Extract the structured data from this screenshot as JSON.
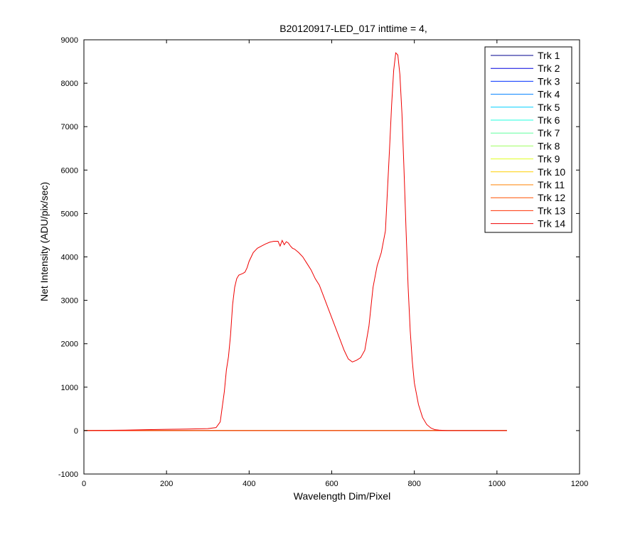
{
  "chart_data": {
    "type": "line",
    "title": "B20120917-LED_017 inttime = 4,",
    "xlabel": "Wavelength Dim/Pixel",
    "ylabel": "Net Intensity (ADU/pix/sec)",
    "xlim": [
      0,
      1200
    ],
    "ylim": [
      -1000,
      9000
    ],
    "xticks": [
      0,
      200,
      400,
      600,
      800,
      1000,
      1200
    ],
    "yticks": [
      -1000,
      0,
      1000,
      2000,
      3000,
      4000,
      5000,
      6000,
      7000,
      8000,
      9000
    ],
    "grid": false,
    "legend_position": "top-right",
    "series": [
      {
        "name": "Trk 1",
        "color": "#00008f",
        "x": [
          0,
          1024
        ],
        "y": [
          0,
          0
        ]
      },
      {
        "name": "Trk 2",
        "color": "#0000df",
        "x": [
          0,
          1024
        ],
        "y": [
          0,
          0
        ]
      },
      {
        "name": "Trk 3",
        "color": "#0030ff",
        "x": [
          0,
          1024
        ],
        "y": [
          0,
          0
        ]
      },
      {
        "name": "Trk 4",
        "color": "#0080ff",
        "x": [
          0,
          1024
        ],
        "y": [
          0,
          0
        ]
      },
      {
        "name": "Trk 5",
        "color": "#00cfff",
        "x": [
          0,
          1024
        ],
        "y": [
          0,
          0
        ]
      },
      {
        "name": "Trk 6",
        "color": "#20ffdf",
        "x": [
          0,
          1024
        ],
        "y": [
          0,
          0
        ]
      },
      {
        "name": "Trk 7",
        "color": "#60ff9f",
        "x": [
          0,
          1024
        ],
        "y": [
          0,
          0
        ]
      },
      {
        "name": "Trk 8",
        "color": "#9fff60",
        "x": [
          0,
          1024
        ],
        "y": [
          0,
          0
        ]
      },
      {
        "name": "Trk 9",
        "color": "#dfff20",
        "x": [
          0,
          1024
        ],
        "y": [
          0,
          0
        ]
      },
      {
        "name": "Trk 10",
        "color": "#ffcf00",
        "x": [
          0,
          1024
        ],
        "y": [
          0,
          0
        ]
      },
      {
        "name": "Trk 11",
        "color": "#ff8000",
        "x": [
          0,
          1024
        ],
        "y": [
          0,
          0
        ]
      },
      {
        "name": "Trk 12",
        "color": "#ff5000",
        "x": [
          0,
          1024
        ],
        "y": [
          0,
          0
        ]
      },
      {
        "name": "Trk 13",
        "color": "#ff3000",
        "x": [
          0,
          1024
        ],
        "y": [
          0,
          0
        ]
      },
      {
        "name": "Trk 14",
        "color": "#ef0000",
        "x": [
          0,
          100,
          150,
          200,
          250,
          300,
          320,
          330,
          340,
          345,
          350,
          355,
          360,
          365,
          370,
          375,
          380,
          385,
          390,
          395,
          400,
          405,
          410,
          415,
          420,
          430,
          440,
          450,
          460,
          470,
          475,
          480,
          485,
          490,
          495,
          500,
          505,
          510,
          520,
          530,
          540,
          550,
          560,
          570,
          580,
          590,
          600,
          610,
          620,
          630,
          640,
          650,
          660,
          670,
          680,
          690,
          700,
          710,
          720,
          730,
          740,
          745,
          750,
          755,
          760,
          765,
          770,
          775,
          780,
          785,
          790,
          795,
          800,
          810,
          820,
          830,
          840,
          850,
          860,
          870,
          880,
          890,
          900,
          950,
          1000,
          1024
        ],
        "y": [
          0,
          10,
          20,
          30,
          35,
          45,
          70,
          200,
          900,
          1400,
          1700,
          2200,
          2900,
          3300,
          3500,
          3580,
          3600,
          3620,
          3650,
          3750,
          3900,
          4000,
          4100,
          4150,
          4200,
          4250,
          4300,
          4340,
          4360,
          4360,
          4250,
          4380,
          4280,
          4350,
          4320,
          4250,
          4200,
          4180,
          4100,
          4000,
          3850,
          3700,
          3500,
          3350,
          3100,
          2850,
          2600,
          2350,
          2100,
          1850,
          1650,
          1580,
          1620,
          1680,
          1850,
          2400,
          3300,
          3800,
          4100,
          4600,
          6500,
          7500,
          8300,
          8700,
          8650,
          8200,
          7300,
          6000,
          4600,
          3300,
          2300,
          1600,
          1100,
          600,
          300,
          140,
          60,
          20,
          10,
          5,
          0,
          0,
          0,
          0,
          0,
          0
        ]
      }
    ]
  }
}
